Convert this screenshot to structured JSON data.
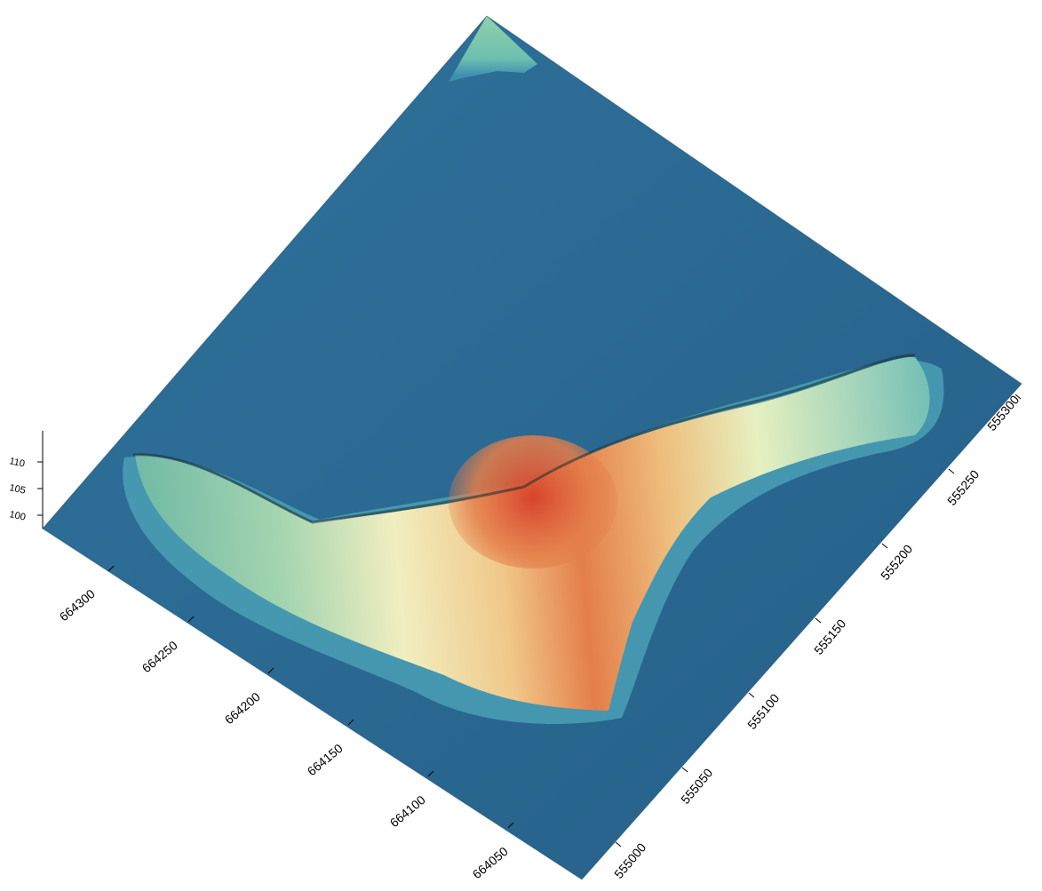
{
  "figure": {
    "kind": "3D shaded relief surface (digital elevation model)",
    "colormap": [
      "#2a6b98",
      "#3f8fb2",
      "#7fc4b4",
      "#b7e0b7",
      "#f2efc2",
      "#f0c889",
      "#e47e4a",
      "#d8442c"
    ],
    "surface_base_color": "#2b6a93"
  },
  "axes": {
    "z_ticks": [
      "110",
      "105",
      "100"
    ],
    "x_ticks": [
      "664300",
      "664250",
      "664200",
      "664150",
      "664100",
      "664050"
    ],
    "y_ticks": [
      "555000",
      "555050",
      "555100",
      "555150",
      "555200",
      "555250",
      "555300"
    ]
  }
}
